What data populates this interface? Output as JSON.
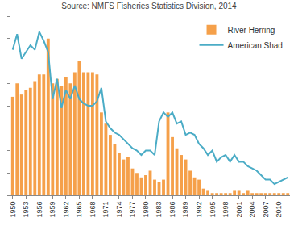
{
  "chart_data": {
    "type": "bar",
    "title": "Source: NMFS Fisheries Statistics Division, 2014",
    "x": [
      1950,
      1951,
      1952,
      1953,
      1954,
      1955,
      1956,
      1957,
      1958,
      1959,
      1960,
      1961,
      1962,
      1963,
      1964,
      1965,
      1966,
      1967,
      1968,
      1969,
      1970,
      1971,
      1972,
      1973,
      1974,
      1975,
      1976,
      1977,
      1978,
      1979,
      1980,
      1981,
      1982,
      1983,
      1984,
      1985,
      1986,
      1987,
      1988,
      1989,
      1990,
      1991,
      1992,
      1993,
      1994,
      1995,
      1996,
      1997,
      1998,
      1999,
      2000,
      2001,
      2002,
      2003,
      2004,
      2005,
      2006,
      2007,
      2008,
      2009,
      2010,
      2011,
      2012
    ],
    "series": [
      {
        "name": "River Herring",
        "type": "bar",
        "color": "#f5a04a",
        "values": [
          4.4,
          5.0,
          4.5,
          4.7,
          4.8,
          5.1,
          5.4,
          5.4,
          7.0,
          5.0,
          5.2,
          4.9,
          5.3,
          5.0,
          5.5,
          6.0,
          5.5,
          5.5,
          5.5,
          5.4,
          3.7,
          3.2,
          2.7,
          2.3,
          1.9,
          1.6,
          1.7,
          1.2,
          1.0,
          0.8,
          0.9,
          1.1,
          0.7,
          0.6,
          0.7,
          3.7,
          2.6,
          2.1,
          1.8,
          1.6,
          1.1,
          0.8,
          0.7,
          0.3,
          0.2,
          0.1,
          0.1,
          0.1,
          0.1,
          0.1,
          0.2,
          0.2,
          0.1,
          0.2,
          0.1,
          0.1,
          0.1,
          0.1,
          0.1,
          0.1,
          0.1,
          0.1,
          0.1
        ]
      },
      {
        "name": "American Shad",
        "type": "line",
        "color": "#4bacc6",
        "values": [
          6.5,
          7.2,
          6.1,
          6.4,
          6.7,
          6.5,
          7.3,
          6.9,
          6.4,
          4.3,
          5.2,
          3.9,
          4.7,
          4.3,
          4.9,
          4.3,
          4.1,
          4.0,
          4.0,
          4.2,
          4.8,
          3.3,
          3.0,
          2.8,
          2.7,
          2.5,
          2.3,
          2.1,
          2.0,
          1.8,
          2.0,
          2.0,
          1.8,
          3.3,
          3.7,
          3.5,
          3.7,
          3.2,
          3.3,
          2.7,
          2.8,
          2.7,
          2.3,
          2.1,
          1.8,
          2.0,
          1.5,
          1.7,
          1.8,
          1.5,
          1.8,
          1.5,
          1.5,
          1.3,
          1.2,
          1.1,
          0.9,
          0.7,
          0.7,
          0.5,
          0.6,
          0.7,
          0.8
        ]
      }
    ],
    "xlim": [
      1949.5,
      2012.5
    ],
    "xticks": [
      1950,
      1953,
      1956,
      1959,
      1962,
      1965,
      1968,
      1971,
      1974,
      1977,
      1980,
      1983,
      1986,
      1989,
      1992,
      1995,
      1998,
      2001,
      2004,
      2007,
      2010
    ],
    "ylim": [
      0,
      8
    ],
    "yticks": [
      0,
      1,
      2,
      3,
      4,
      5,
      6,
      7,
      8
    ],
    "tick_labels": "x",
    "grid": false,
    "legend": "upper right"
  }
}
